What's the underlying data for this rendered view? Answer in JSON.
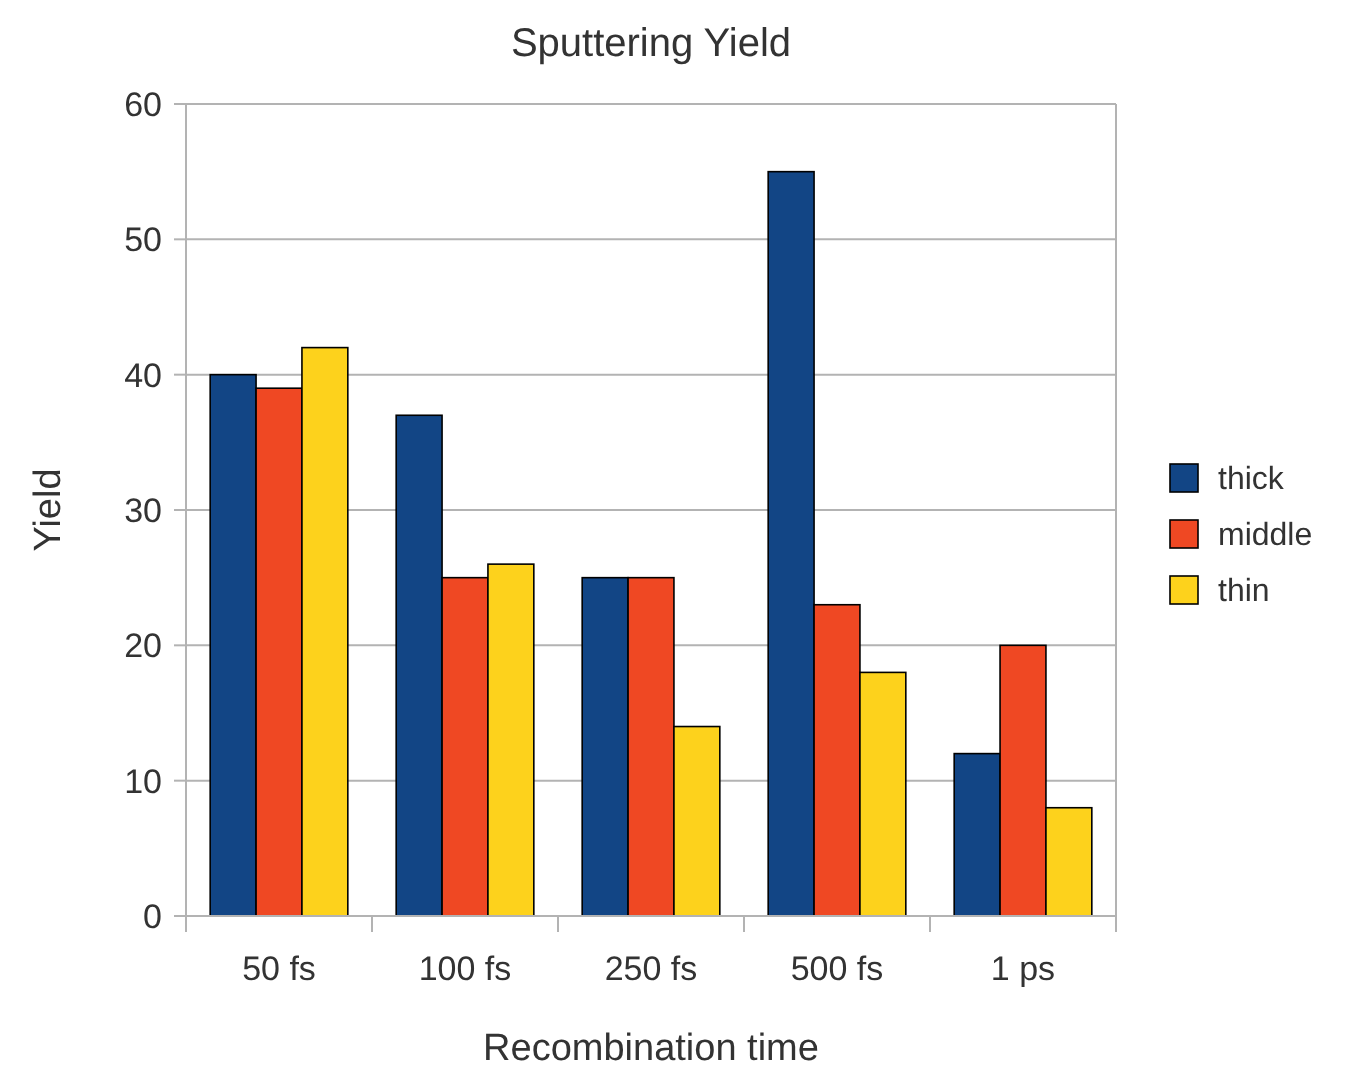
{
  "chart_data": {
    "type": "bar",
    "title": "Sputtering Yield",
    "xlabel": "Recombination time",
    "ylabel": "Yield",
    "categories": [
      "50 fs",
      "100 fs",
      "250 fs",
      "500 fs",
      "1 ps"
    ],
    "series": [
      {
        "name": "thick",
        "color": "#124585",
        "values": [
          40,
          37,
          25,
          55,
          12
        ]
      },
      {
        "name": "middle",
        "color": "#ef4823",
        "values": [
          39,
          25,
          25,
          23,
          20
        ]
      },
      {
        "name": "thin",
        "color": "#fdd21c",
        "values": [
          42,
          26,
          14,
          18,
          8
        ]
      }
    ],
    "ylim": [
      0,
      60
    ],
    "yticks": [
      0,
      10,
      20,
      30,
      40,
      50,
      60
    ],
    "grid": "y",
    "legend": "right"
  }
}
